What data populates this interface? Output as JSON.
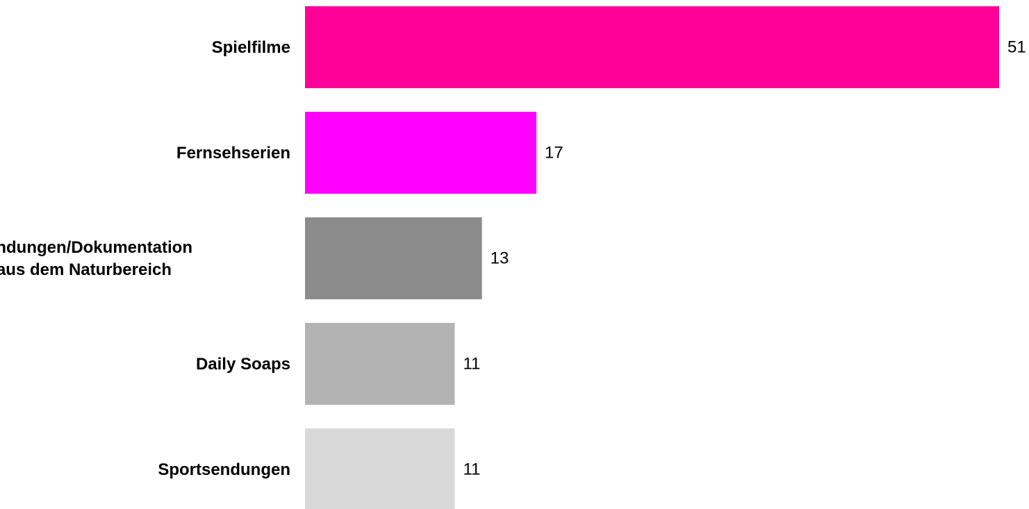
{
  "chart_data": {
    "type": "bar",
    "orientation": "horizontal",
    "categories": [
      "Spielfilme",
      "Fernsehserien",
      "Sendungen/Dokumentation aus dem Naturbereich",
      "Daily Soaps",
      "Sportsendungen"
    ],
    "category_lines": [
      [
        "Spielfilme"
      ],
      [
        "Fernsehserien"
      ],
      [
        "Sendungen/Dokumentation",
        "aus dem Naturbereich"
      ],
      [
        "Daily Soaps"
      ],
      [
        "Sportsendungen"
      ]
    ],
    "values": [
      51,
      17,
      13,
      11,
      11
    ],
    "value_labels": [
      "51",
      "17",
      "13",
      "11",
      "11"
    ],
    "colors": [
      "#ff0099",
      "#ff00ff",
      "#8c8c8c",
      "#b3b3b3",
      "#d9d9d9"
    ],
    "title": "",
    "xlabel": "",
    "ylabel": "",
    "xlim": [
      0,
      51
    ],
    "grid": false,
    "legend": "none"
  }
}
